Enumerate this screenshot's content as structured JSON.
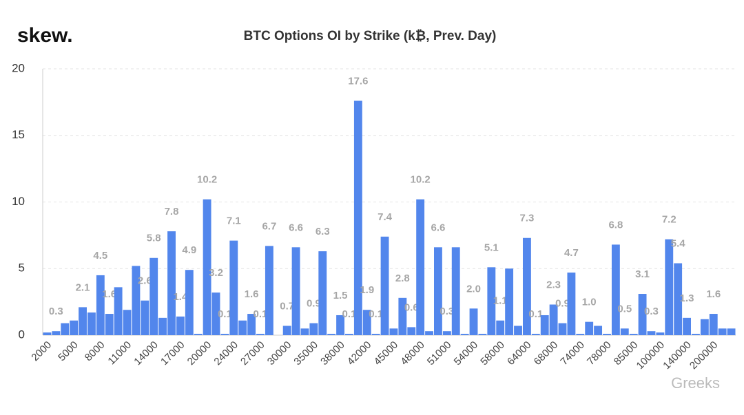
{
  "logo": "skew.",
  "watermark": "Greeks",
  "chart_data": {
    "type": "bar",
    "title": "BTC Options OI by Strike (k₿, Prev. Day)",
    "categories": [
      "2000",
      null,
      null,
      "5000",
      null,
      null,
      "8000",
      null,
      null,
      "11000",
      null,
      null,
      "14000",
      null,
      null,
      "17000",
      null,
      null,
      "20000",
      null,
      null,
      "24000",
      null,
      null,
      "27000",
      null,
      null,
      "30000",
      null,
      null,
      "35000",
      null,
      null,
      "38000",
      null,
      null,
      "42000",
      null,
      null,
      "45000",
      null,
      null,
      "48000",
      null,
      null,
      "51000",
      null,
      null,
      "54000",
      null,
      null,
      "58000",
      null,
      null,
      "64000",
      null,
      null,
      "68000",
      null,
      null,
      "74000",
      null,
      null,
      "78000",
      null,
      null,
      "85000",
      null,
      null,
      "100000",
      null,
      null,
      "140000",
      null,
      null,
      "200000",
      null,
      null
    ],
    "values": [
      0.2,
      0.3,
      0.9,
      1.1,
      2.1,
      1.7,
      4.5,
      1.6,
      3.6,
      1.9,
      5.2,
      2.6,
      5.8,
      1.3,
      7.8,
      1.4,
      4.9,
      0.1,
      10.2,
      3.2,
      0.1,
      7.1,
      1.1,
      1.6,
      0.1,
      6.7,
      0,
      0.7,
      6.6,
      0.5,
      0.9,
      6.3,
      0.1,
      1.5,
      0.1,
      17.6,
      1.9,
      0.1,
      7.4,
      0.5,
      2.8,
      0.6,
      10.2,
      0.3,
      6.6,
      0.3,
      6.6,
      0.1,
      2.0,
      0.1,
      5.1,
      1.1,
      5.0,
      0.7,
      7.3,
      0.1,
      1.5,
      2.3,
      0.9,
      4.7,
      0.1,
      1.0,
      0.7,
      0.1,
      6.8,
      0.5,
      0.1,
      3.1,
      0.3,
      0.2,
      7.2,
      5.4,
      1.3,
      0.1,
      1.2,
      1.6,
      0.5,
      0.5
    ],
    "value_labels": [
      null,
      "0.3",
      null,
      null,
      "2.1",
      null,
      "4.5",
      "1.6",
      null,
      null,
      null,
      "2.6",
      "5.8",
      null,
      "7.8",
      "1.4",
      "4.9",
      null,
      "10.2",
      "3.2",
      "0.1",
      "7.1",
      null,
      "1.6",
      "0.1",
      "6.7",
      null,
      "0.7",
      "6.6",
      null,
      "0.9",
      "6.3",
      null,
      "1.5",
      "0.1",
      "17.6",
      "1.9",
      "0.1",
      "7.4",
      null,
      "2.8",
      "0.6",
      "10.2",
      null,
      "6.6",
      "0.3",
      null,
      null,
      "2.0",
      null,
      "5.1",
      "1.1",
      null,
      null,
      "7.3",
      "0.1",
      null,
      "2.3",
      "0.9",
      "4.7",
      null,
      "1.0",
      null,
      null,
      "6.8",
      "0.5",
      null,
      "3.1",
      "0.3",
      null,
      "7.2",
      "5.4",
      "1.3",
      null,
      null,
      "1.6",
      null,
      null
    ],
    "color": "#5286ec",
    "ylim": [
      0,
      20
    ],
    "yticks": [
      0,
      5,
      10,
      15,
      20
    ],
    "grid": true
  }
}
